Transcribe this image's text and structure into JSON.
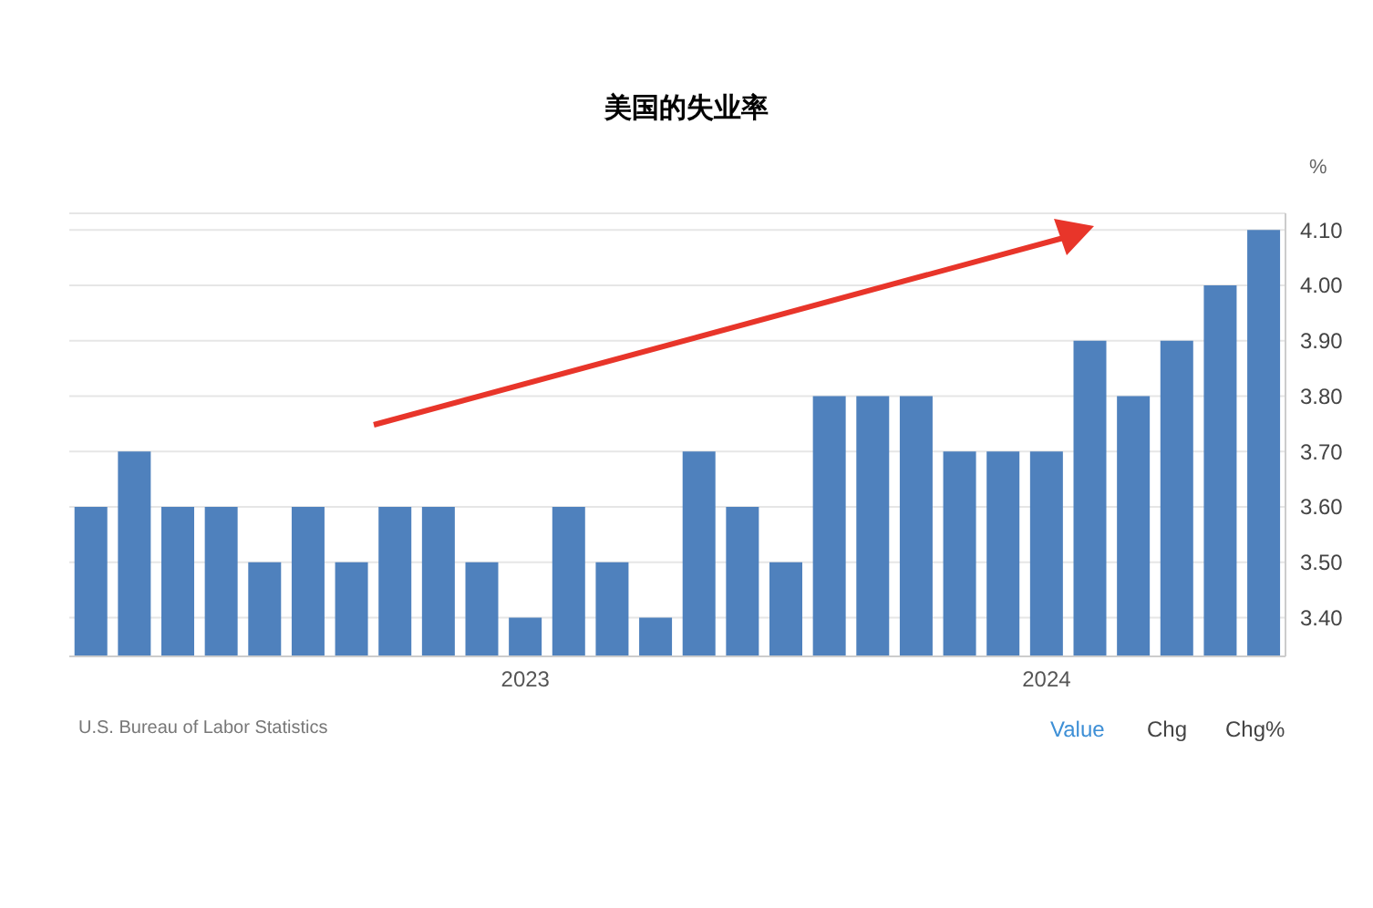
{
  "chart_data": {
    "type": "bar",
    "title": "美国的失业率",
    "ylabel": "%",
    "categories": [
      null,
      null,
      null,
      null,
      null,
      null,
      null,
      null,
      null,
      null,
      "2023",
      null,
      null,
      null,
      null,
      null,
      null,
      null,
      null,
      null,
      null,
      null,
      "2024",
      null,
      null,
      null,
      null,
      null
    ],
    "values": [
      3.6,
      3.7,
      3.6,
      3.6,
      3.5,
      3.6,
      3.5,
      3.6,
      3.6,
      3.5,
      3.4,
      3.6,
      3.5,
      3.4,
      3.7,
      3.6,
      3.5,
      3.8,
      3.8,
      3.8,
      3.7,
      3.7,
      3.7,
      3.9,
      3.8,
      3.9,
      4.0,
      4.1
    ],
    "color": "#4f81bd",
    "ylim": [
      3.33,
      4.13
    ],
    "yticks": [
      {
        "value": 3.4,
        "label": "3.40"
      },
      {
        "value": 3.5,
        "label": "3.50"
      },
      {
        "value": 3.6,
        "label": "3.60"
      },
      {
        "value": 3.7,
        "label": "3.70"
      },
      {
        "value": 3.8,
        "label": "3.80"
      },
      {
        "value": 3.9,
        "label": "3.90"
      },
      {
        "value": 4.0,
        "label": "4.00"
      },
      {
        "value": 4.1,
        "label": "4.10"
      }
    ],
    "grid": "y",
    "annotations": [
      "U.S. Bureau of Labor Statistics",
      "Value",
      "Chg",
      "Chg%"
    ]
  }
}
